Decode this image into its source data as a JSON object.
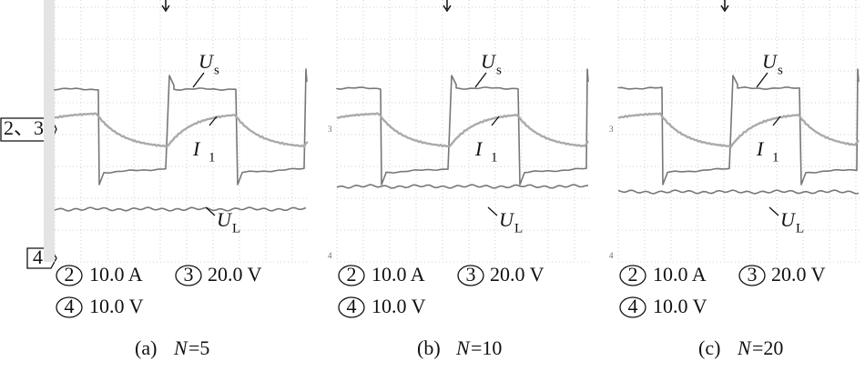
{
  "markers": {
    "ch23": "2、3",
    "ch4": "4"
  },
  "panels": [
    {
      "signals": {
        "us": {
          "symbol": "U",
          "subscript": "s"
        },
        "i1": {
          "symbol": "I",
          "subscript": "1"
        },
        "ul": {
          "symbol": "U",
          "subscript": "L"
        }
      },
      "scale": [
        {
          "channel": "2",
          "value": "10.0 A"
        },
        {
          "channel": "3",
          "value": "20.0 V"
        },
        {
          "channel": "4",
          "value": "10.0 V"
        }
      ],
      "caption": {
        "label": "(a)",
        "variable": "N",
        "value": "=5"
      }
    },
    {
      "signals": {
        "us": {
          "symbol": "U",
          "subscript": "s"
        },
        "i1": {
          "symbol": "I",
          "subscript": "1"
        },
        "ul": {
          "symbol": "U",
          "subscript": "L"
        }
      },
      "markers": {
        "top": "3",
        "bottom": "4"
      },
      "scale": [
        {
          "channel": "2",
          "value": "10.0 A"
        },
        {
          "channel": "3",
          "value": "20.0 V"
        },
        {
          "channel": "4",
          "value": "10.0 V"
        }
      ],
      "caption": {
        "label": "(b)",
        "variable": "N",
        "value": "=10"
      }
    },
    {
      "signals": {
        "us": {
          "symbol": "U",
          "subscript": "s"
        },
        "i1": {
          "symbol": "I",
          "subscript": "1"
        },
        "ul": {
          "symbol": "U",
          "subscript": "L"
        }
      },
      "markers": {
        "top": "3",
        "bottom": "4"
      },
      "scale": [
        {
          "channel": "2",
          "value": "10.0 A"
        },
        {
          "channel": "3",
          "value": "20.0 V"
        },
        {
          "channel": "4",
          "value": "10.0 V"
        }
      ],
      "caption": {
        "label": "(c)",
        "variable": "N",
        "value": "=20"
      }
    }
  ]
}
